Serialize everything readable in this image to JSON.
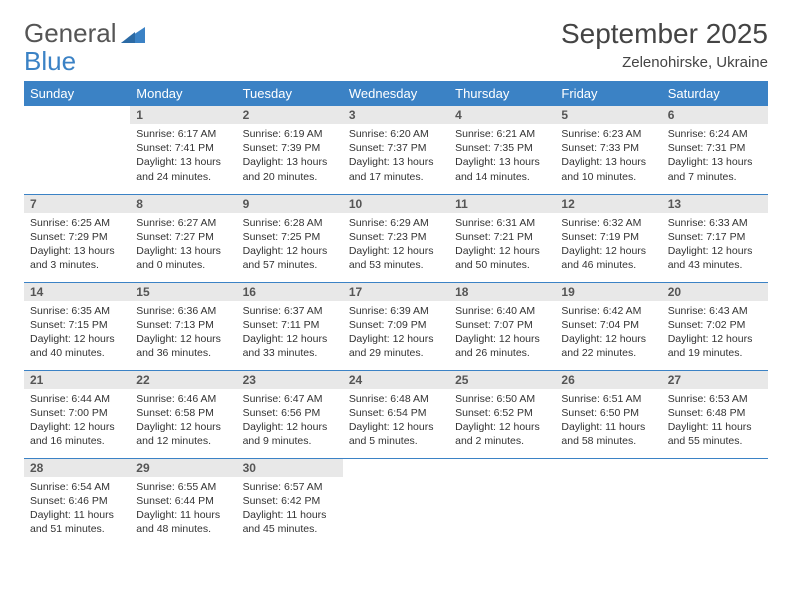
{
  "brand": {
    "word1": "General",
    "word2": "Blue"
  },
  "colors": {
    "accent": "#3b82c5",
    "header_text": "#ffffff",
    "daynum_bg": "#e8e8e8",
    "daynum_text": "#555555",
    "body_text": "#333333",
    "background": "#ffffff",
    "logo_gray": "#555555"
  },
  "typography": {
    "month_title_fontsize": 28,
    "location_fontsize": 15,
    "dayheader_fontsize": 13,
    "daynum_fontsize": 12,
    "cell_fontsize": 10.5
  },
  "month_title": "September 2025",
  "location": "Zelenohirske, Ukraine",
  "day_headers": [
    "Sunday",
    "Monday",
    "Tuesday",
    "Wednesday",
    "Thursday",
    "Friday",
    "Saturday"
  ],
  "weeks": [
    [
      {
        "blank": true
      },
      {
        "n": "1",
        "sunrise": "6:17 AM",
        "sunset": "7:41 PM",
        "daylight": "13 hours and 24 minutes."
      },
      {
        "n": "2",
        "sunrise": "6:19 AM",
        "sunset": "7:39 PM",
        "daylight": "13 hours and 20 minutes."
      },
      {
        "n": "3",
        "sunrise": "6:20 AM",
        "sunset": "7:37 PM",
        "daylight": "13 hours and 17 minutes."
      },
      {
        "n": "4",
        "sunrise": "6:21 AM",
        "sunset": "7:35 PM",
        "daylight": "13 hours and 14 minutes."
      },
      {
        "n": "5",
        "sunrise": "6:23 AM",
        "sunset": "7:33 PM",
        "daylight": "13 hours and 10 minutes."
      },
      {
        "n": "6",
        "sunrise": "6:24 AM",
        "sunset": "7:31 PM",
        "daylight": "13 hours and 7 minutes."
      }
    ],
    [
      {
        "n": "7",
        "sunrise": "6:25 AM",
        "sunset": "7:29 PM",
        "daylight": "13 hours and 3 minutes."
      },
      {
        "n": "8",
        "sunrise": "6:27 AM",
        "sunset": "7:27 PM",
        "daylight": "13 hours and 0 minutes."
      },
      {
        "n": "9",
        "sunrise": "6:28 AM",
        "sunset": "7:25 PM",
        "daylight": "12 hours and 57 minutes."
      },
      {
        "n": "10",
        "sunrise": "6:29 AM",
        "sunset": "7:23 PM",
        "daylight": "12 hours and 53 minutes."
      },
      {
        "n": "11",
        "sunrise": "6:31 AM",
        "sunset": "7:21 PM",
        "daylight": "12 hours and 50 minutes."
      },
      {
        "n": "12",
        "sunrise": "6:32 AM",
        "sunset": "7:19 PM",
        "daylight": "12 hours and 46 minutes."
      },
      {
        "n": "13",
        "sunrise": "6:33 AM",
        "sunset": "7:17 PM",
        "daylight": "12 hours and 43 minutes."
      }
    ],
    [
      {
        "n": "14",
        "sunrise": "6:35 AM",
        "sunset": "7:15 PM",
        "daylight": "12 hours and 40 minutes."
      },
      {
        "n": "15",
        "sunrise": "6:36 AM",
        "sunset": "7:13 PM",
        "daylight": "12 hours and 36 minutes."
      },
      {
        "n": "16",
        "sunrise": "6:37 AM",
        "sunset": "7:11 PM",
        "daylight": "12 hours and 33 minutes."
      },
      {
        "n": "17",
        "sunrise": "6:39 AM",
        "sunset": "7:09 PM",
        "daylight": "12 hours and 29 minutes."
      },
      {
        "n": "18",
        "sunrise": "6:40 AM",
        "sunset": "7:07 PM",
        "daylight": "12 hours and 26 minutes."
      },
      {
        "n": "19",
        "sunrise": "6:42 AM",
        "sunset": "7:04 PM",
        "daylight": "12 hours and 22 minutes."
      },
      {
        "n": "20",
        "sunrise": "6:43 AM",
        "sunset": "7:02 PM",
        "daylight": "12 hours and 19 minutes."
      }
    ],
    [
      {
        "n": "21",
        "sunrise": "6:44 AM",
        "sunset": "7:00 PM",
        "daylight": "12 hours and 16 minutes."
      },
      {
        "n": "22",
        "sunrise": "6:46 AM",
        "sunset": "6:58 PM",
        "daylight": "12 hours and 12 minutes."
      },
      {
        "n": "23",
        "sunrise": "6:47 AM",
        "sunset": "6:56 PM",
        "daylight": "12 hours and 9 minutes."
      },
      {
        "n": "24",
        "sunrise": "6:48 AM",
        "sunset": "6:54 PM",
        "daylight": "12 hours and 5 minutes."
      },
      {
        "n": "25",
        "sunrise": "6:50 AM",
        "sunset": "6:52 PM",
        "daylight": "12 hours and 2 minutes."
      },
      {
        "n": "26",
        "sunrise": "6:51 AM",
        "sunset": "6:50 PM",
        "daylight": "11 hours and 58 minutes."
      },
      {
        "n": "27",
        "sunrise": "6:53 AM",
        "sunset": "6:48 PM",
        "daylight": "11 hours and 55 minutes."
      }
    ],
    [
      {
        "n": "28",
        "sunrise": "6:54 AM",
        "sunset": "6:46 PM",
        "daylight": "11 hours and 51 minutes."
      },
      {
        "n": "29",
        "sunrise": "6:55 AM",
        "sunset": "6:44 PM",
        "daylight": "11 hours and 48 minutes."
      },
      {
        "n": "30",
        "sunrise": "6:57 AM",
        "sunset": "6:42 PM",
        "daylight": "11 hours and 45 minutes."
      },
      {
        "blank": true
      },
      {
        "blank": true
      },
      {
        "blank": true
      },
      {
        "blank": true
      }
    ]
  ],
  "labels": {
    "sunrise": "Sunrise:",
    "sunset": "Sunset:",
    "daylight": "Daylight:"
  }
}
